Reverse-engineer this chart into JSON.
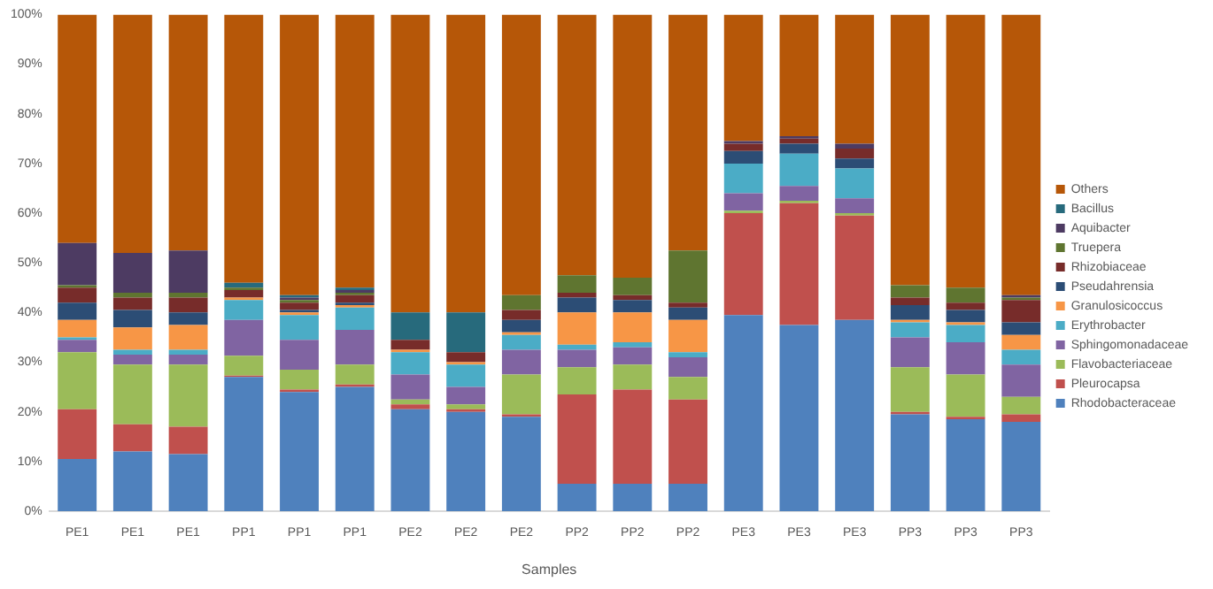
{
  "chart_data": {
    "type": "bar",
    "stacked": true,
    "xlabel": "Samples",
    "categories": [
      "PE1",
      "PE1",
      "PE1",
      "PP1",
      "PP1",
      "PP1",
      "PE2",
      "PE2",
      "PE2",
      "PP2",
      "PP2",
      "PP2",
      "PE3",
      "PE3",
      "PE3",
      "PP3",
      "PP3",
      "PP3"
    ],
    "ylim": [
      0,
      100
    ],
    "yticks": [
      {
        "value": 0,
        "label": "0%"
      },
      {
        "value": 10,
        "label": "10%"
      },
      {
        "value": 20,
        "label": "20%"
      },
      {
        "value": 30,
        "label": "30%"
      },
      {
        "value": 40,
        "label": "40%"
      },
      {
        "value": 50,
        "label": "50%"
      },
      {
        "value": 60,
        "label": "60%"
      },
      {
        "value": 70,
        "label": "70%"
      },
      {
        "value": 80,
        "label": "80%"
      },
      {
        "value": 90,
        "label": "90%"
      },
      {
        "value": 100,
        "label": "100%"
      }
    ],
    "grid": false,
    "legend": "right",
    "series": [
      {
        "name": "Rhodobacteraceae",
        "color": "#4f81bd",
        "values": [
          10.5,
          12,
          11.5,
          27,
          24,
          25,
          20.5,
          20,
          19,
          5.5,
          5.5,
          5.5,
          39.5,
          37.5,
          38.5,
          19.5,
          18.5,
          18
        ]
      },
      {
        "name": "Pleurocapsa",
        "color": "#c0504d",
        "values": [
          10,
          5.5,
          5.5,
          0.3,
          0.5,
          0.5,
          1,
          0.5,
          0.5,
          18,
          19,
          17,
          20.5,
          24.5,
          21,
          0.5,
          0.5,
          1.5
        ]
      },
      {
        "name": "Flavobacteriaceae",
        "color": "#9bbb59",
        "values": [
          11.5,
          12,
          12.5,
          4,
          4,
          4,
          1,
          1,
          8,
          5.5,
          5,
          4.5,
          0.5,
          0.5,
          0.5,
          9,
          8.5,
          3.5
        ]
      },
      {
        "name": "Sphingomonadaceae",
        "color": "#8064a2",
        "values": [
          2.5,
          2,
          2,
          7.2,
          6,
          7,
          5,
          3.5,
          5,
          3.5,
          3.5,
          4,
          3.5,
          3,
          3,
          6,
          6.5,
          6.5
        ]
      },
      {
        "name": "Erythrobacter",
        "color": "#4bacc6",
        "values": [
          0.5,
          1,
          1,
          4,
          5,
          4.5,
          4.5,
          4.5,
          3,
          1,
          1,
          1,
          6,
          6.5,
          6,
          3,
          3.5,
          3
        ]
      },
      {
        "name": "Granulosicoccus",
        "color": "#f79646",
        "values": [
          3.5,
          4.5,
          5,
          0.5,
          0.5,
          0.5,
          0.5,
          0.5,
          0.5,
          6.5,
          6,
          6.5,
          0,
          0,
          0,
          0.5,
          0.5,
          3
        ]
      },
      {
        "name": "Pseudahrensia",
        "color": "#2c4d75",
        "values": [
          3.5,
          3.5,
          2.5,
          0,
          0.5,
          0.5,
          0,
          0,
          2.5,
          3,
          2.5,
          2.5,
          2.5,
          2,
          2,
          3,
          2.5,
          2.5
        ]
      },
      {
        "name": "Rhizobiaceae",
        "color": "#772c2a",
        "values": [
          3,
          2.5,
          3,
          1.5,
          1.5,
          1.5,
          2,
          2,
          2,
          1,
          1,
          1,
          1.5,
          1,
          2,
          1.5,
          1.5,
          4.5
        ]
      },
      {
        "name": "Truepera",
        "color": "#5f7530",
        "values": [
          0.5,
          1,
          1,
          0.5,
          0.5,
          0.5,
          0,
          0,
          3,
          3.5,
          3.5,
          10.5,
          0,
          0,
          0,
          2.5,
          3,
          0.5
        ]
      },
      {
        "name": "Aquibacter",
        "color": "#4d3b62",
        "values": [
          8.5,
          8,
          8.5,
          0,
          0.5,
          0.5,
          0,
          0,
          0,
          0,
          0,
          0,
          0.5,
          0.5,
          1,
          0,
          0,
          0.5
        ]
      },
      {
        "name": "Bacillus",
        "color": "#276a7c",
        "values": [
          0,
          0,
          0,
          1,
          0.5,
          0.5,
          5.5,
          8,
          0,
          0,
          0,
          0,
          0,
          0,
          0,
          0,
          0,
          0
        ]
      },
      {
        "name": "Others",
        "color": "#b65708",
        "values": [
          46,
          48,
          47.5,
          54,
          56.5,
          55,
          60,
          60,
          56.5,
          52.5,
          53,
          47.5,
          25.5,
          24.5,
          26,
          54.5,
          55,
          56.5
        ]
      }
    ]
  }
}
